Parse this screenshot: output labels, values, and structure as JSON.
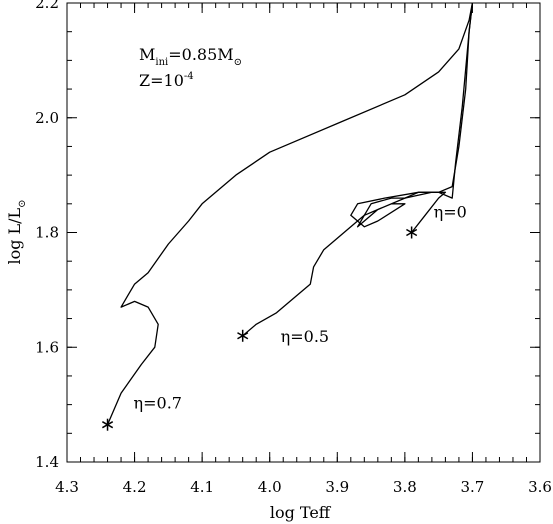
{
  "chart_data": {
    "type": "line",
    "xlabel": "log Teff",
    "ylabel": "log L/L",
    "ylabel_symbol": "⊙",
    "xlim": [
      4.3,
      3.6
    ],
    "ylim": [
      1.4,
      2.2
    ],
    "x_reversed": true,
    "xticks": [
      4.3,
      4.2,
      4.1,
      4.0,
      3.9,
      3.8,
      3.7,
      3.6
    ],
    "xtick_labels": [
      "4.3",
      "4.2",
      "4.1",
      "4.0",
      "3.9",
      "3.8",
      "3.7",
      "3.6"
    ],
    "yticks": [
      1.4,
      1.6,
      1.8,
      2.0,
      2.2
    ],
    "ytick_labels": [
      "1.4",
      "1.6",
      "1.8",
      "2.0",
      "2.2"
    ],
    "grid": false,
    "annotation": {
      "line1": "M",
      "line1_sub": "ini",
      "line1_rest": "=0.85M",
      "line1_symbol": "⊙",
      "line2": "Z=10",
      "line2_sup": "-4"
    },
    "series": [
      {
        "label": "η=0",
        "start": [
          3.79,
          1.8
        ],
        "points": [
          [
            3.79,
            1.8
          ],
          [
            3.77,
            1.83
          ],
          [
            3.75,
            1.86
          ],
          [
            3.74,
            1.87
          ],
          [
            3.76,
            1.87
          ],
          [
            3.8,
            1.86
          ],
          [
            3.84,
            1.84
          ],
          [
            3.87,
            1.81
          ],
          [
            3.86,
            1.83
          ],
          [
            3.82,
            1.85
          ],
          [
            3.8,
            1.85
          ],
          [
            3.84,
            1.82
          ],
          [
            3.86,
            1.81
          ],
          [
            3.88,
            1.83
          ],
          [
            3.87,
            1.85
          ],
          [
            3.83,
            1.86
          ],
          [
            3.78,
            1.87
          ],
          [
            3.75,
            1.87
          ],
          [
            3.73,
            1.86
          ],
          [
            3.725,
            1.92
          ],
          [
            3.715,
            2.02
          ],
          [
            3.705,
            2.15
          ],
          [
            3.7,
            2.2
          ]
        ]
      },
      {
        "label": "η=0.5",
        "start": [
          4.04,
          1.62
        ],
        "points": [
          [
            4.04,
            1.62
          ],
          [
            4.02,
            1.64
          ],
          [
            3.99,
            1.66
          ],
          [
            3.96,
            1.69
          ],
          [
            3.94,
            1.71
          ],
          [
            3.935,
            1.74
          ],
          [
            3.92,
            1.77
          ],
          [
            3.9,
            1.79
          ],
          [
            3.88,
            1.81
          ],
          [
            3.86,
            1.83
          ],
          [
            3.85,
            1.85
          ],
          [
            3.82,
            1.86
          ],
          [
            3.8,
            1.86
          ],
          [
            3.78,
            1.87
          ],
          [
            3.75,
            1.87
          ],
          [
            3.73,
            1.88
          ],
          [
            3.72,
            1.95
          ],
          [
            3.71,
            2.05
          ],
          [
            3.705,
            2.15
          ],
          [
            3.7,
            2.2
          ]
        ]
      },
      {
        "label": "η=0.7",
        "start": [
          4.24,
          1.465
        ],
        "points": [
          [
            4.24,
            1.465
          ],
          [
            4.22,
            1.52
          ],
          [
            4.19,
            1.57
          ],
          [
            4.17,
            1.6
          ],
          [
            4.165,
            1.64
          ],
          [
            4.18,
            1.67
          ],
          [
            4.2,
            1.68
          ],
          [
            4.22,
            1.67
          ],
          [
            4.21,
            1.69
          ],
          [
            4.2,
            1.71
          ],
          [
            4.18,
            1.73
          ],
          [
            4.15,
            1.78
          ],
          [
            4.12,
            1.82
          ],
          [
            4.1,
            1.85
          ],
          [
            4.05,
            1.9
          ],
          [
            4.0,
            1.94
          ],
          [
            3.9,
            1.99
          ],
          [
            3.8,
            2.04
          ],
          [
            3.75,
            2.08
          ],
          [
            3.72,
            2.12
          ],
          [
            3.705,
            2.17
          ],
          [
            3.7,
            2.2
          ]
        ]
      }
    ]
  }
}
